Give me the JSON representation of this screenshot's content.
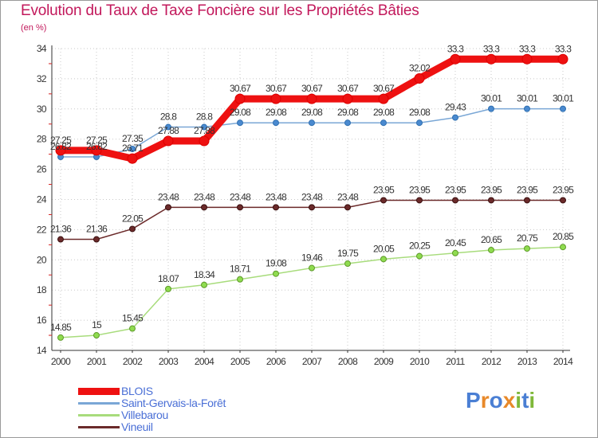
{
  "title": "Evolution du Taux de Taxe Foncière sur les Propriétés Bâties",
  "unit_label": "(en %)",
  "brand": {
    "text": "Proxiti",
    "letter_colors": [
      "#4a7fd4",
      "#e8892a",
      "#4a7fd4",
      "#e8892a",
      "#7fb83a",
      "#4a7fd4",
      "#7fb83a"
    ]
  },
  "chart_data": {
    "type": "line",
    "title": "Evolution du Taux de Taxe Foncière sur les Propriétés Bâties",
    "ylabel": "(en %)",
    "xlabel": "",
    "ylim": [
      14,
      34
    ],
    "yticks": [
      14,
      16,
      18,
      20,
      22,
      24,
      26,
      28,
      30,
      32,
      34
    ],
    "categories": [
      "2000",
      "2001",
      "2002",
      "2003",
      "2004",
      "2005",
      "2006",
      "2007",
      "2008",
      "2009",
      "2010",
      "2011",
      "2012",
      "2013",
      "2014"
    ],
    "series": [
      {
        "name": "BLOIS",
        "color": "#ee1111",
        "values": [
          27.25,
          27.25,
          26.71,
          27.88,
          27.88,
          30.67,
          30.67,
          30.67,
          30.67,
          30.67,
          32.02,
          33.3,
          33.3,
          33.3,
          33.3
        ],
        "labels": [
          "27.25",
          "27.25",
          "26.71",
          "27.88",
          "27.88",
          "30.67",
          "30.67",
          "30.67",
          "30.67",
          "30.67",
          "32.02",
          "33.3",
          "33.3",
          "33.3",
          "33.3"
        ]
      },
      {
        "name": "Saint-Gervais-la-Forêt",
        "color": "#7aa7d6",
        "values": [
          26.82,
          26.82,
          27.35,
          28.8,
          28.8,
          29.08,
          29.08,
          29.08,
          29.08,
          29.08,
          29.08,
          29.43,
          30.01,
          30.01,
          30.01
        ],
        "labels": [
          "26.82",
          "26.82",
          "27.35",
          "28.8",
          "28.8",
          "29.08",
          "29.08",
          "29.08",
          "29.08",
          "29.08",
          "29.08",
          "29.43",
          "30.01",
          "30.01",
          "30.01"
        ]
      },
      {
        "name": "Villebarou",
        "color": "#a8dc7c",
        "values": [
          14.85,
          15,
          15.45,
          18.07,
          18.34,
          18.71,
          19.08,
          19.46,
          19.75,
          20.05,
          20.25,
          20.45,
          20.65,
          20.75,
          20.85
        ],
        "labels": [
          "14.85",
          "15",
          "15.45",
          "18.07",
          "18.34",
          "18.71",
          "19.08",
          "19.46",
          "19.75",
          "20.05",
          "20.25",
          "20.45",
          "20.65",
          "20.75",
          "20.85"
        ]
      },
      {
        "name": "Vineuil",
        "color": "#6b2a2a",
        "values": [
          21.36,
          21.36,
          22.05,
          23.48,
          23.48,
          23.48,
          23.48,
          23.48,
          23.48,
          23.95,
          23.95,
          23.95,
          23.95,
          23.95,
          23.95
        ],
        "labels": [
          "21.36",
          "21.36",
          "22.05",
          "23.48",
          "23.48",
          "23.48",
          "23.48",
          "23.48",
          "23.48",
          "23.95",
          "23.95",
          "23.95",
          "23.95",
          "23.95",
          "23.95"
        ]
      }
    ],
    "legend_position": "bottom-left",
    "grid": true
  }
}
